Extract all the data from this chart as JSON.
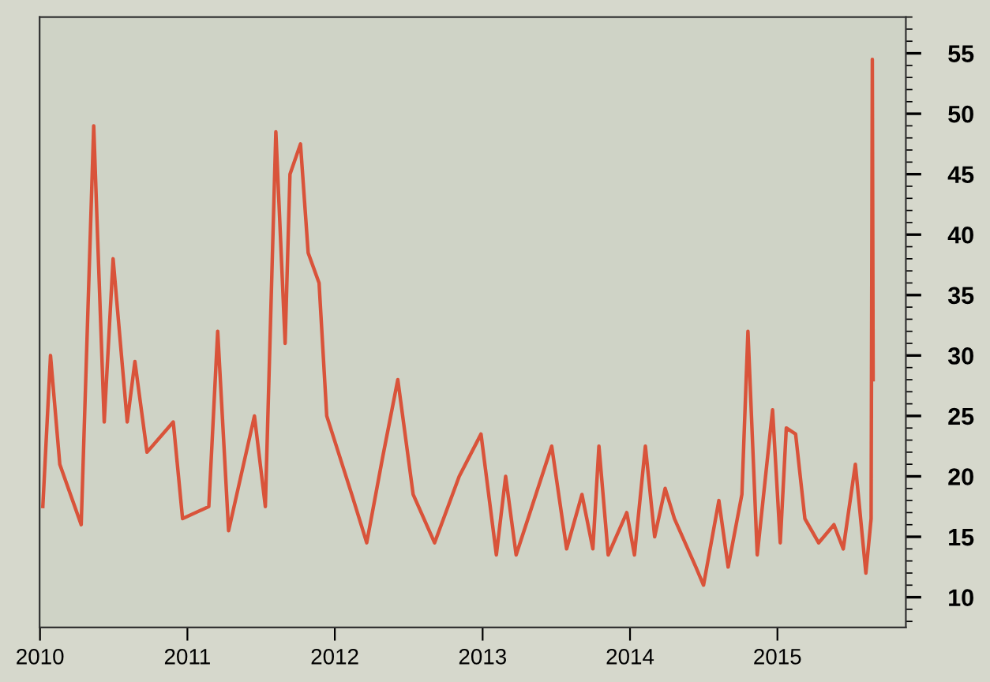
{
  "chart_data": {
    "type": "line",
    "x": [
      "2010-01-08",
      "2010-01-27",
      "2010-02-19",
      "2010-04-13",
      "2010-05-14",
      "2010-05-25",
      "2010-06-09",
      "2010-07-01",
      "2010-08-05",
      "2010-08-24",
      "2010-09-23",
      "2010-11-27",
      "2010-12-20",
      "2011-02-23",
      "2011-03-17",
      "2011-04-13",
      "2011-06-16",
      "2011-07-13",
      "2011-08-08",
      "2011-08-31",
      "2011-09-12",
      "2011-10-08",
      "2011-10-27",
      "2011-11-23",
      "2011-12-12",
      "2012-02-12",
      "2012-03-20",
      "2012-04-28",
      "2012-06-05",
      "2012-07-13",
      "2012-09-04",
      "2012-11-04",
      "2012-12-28",
      "2013-02-04",
      "2013-02-27",
      "2013-03-25",
      "2013-06-21",
      "2013-07-28",
      "2013-09-04",
      "2013-10-01",
      "2013-10-16",
      "2013-11-08",
      "2013-12-24",
      "2014-01-12",
      "2014-02-08",
      "2014-03-03",
      "2014-03-29",
      "2014-04-21",
      "2014-06-13",
      "2014-07-02",
      "2014-08-09",
      "2014-09-01",
      "2014-10-05",
      "2014-10-20",
      "2014-11-12",
      "2014-12-20",
      "2015-01-08",
      "2015-01-23",
      "2015-02-15",
      "2015-03-10",
      "2015-04-13",
      "2015-05-21",
      "2015-06-13",
      "2015-07-13",
      "2015-08-08",
      "2015-08-21",
      "2015-08-24",
      "2015-08-26"
    ],
    "series": [
      {
        "color": "#d9533a",
        "values": [
          17.5,
          30,
          21,
          16,
          49,
          38.5,
          24.5,
          38,
          24.5,
          29.5,
          22,
          24.5,
          16.5,
          17.5,
          32,
          15.5,
          25,
          17.5,
          48.5,
          31,
          45,
          47.5,
          38.5,
          36,
          25,
          18.5,
          14.5,
          21.5,
          28,
          18.5,
          14.5,
          20,
          23.5,
          13.5,
          20,
          13.5,
          22.5,
          14,
          18.5,
          14,
          22.5,
          13.5,
          17,
          13.5,
          22.5,
          15,
          19,
          16.5,
          12.5,
          11,
          18,
          12.5,
          18.5,
          32,
          13.5,
          25.5,
          14.5,
          24,
          23.5,
          16.5,
          14.5,
          16,
          14,
          21,
          12,
          16.5,
          54.5,
          28
        ]
      }
    ],
    "xlim": [
      "2009-12-31",
      "2015-11-15"
    ],
    "xticks": [
      {
        "value": "2010-01-01",
        "label": "2010"
      },
      {
        "value": "2011-01-01",
        "label": "2011"
      },
      {
        "value": "2012-01-01",
        "label": "2012"
      },
      {
        "value": "2013-01-01",
        "label": "2013"
      },
      {
        "value": "2014-01-01",
        "label": "2014"
      },
      {
        "value": "2015-01-01",
        "label": "2015"
      }
    ],
    "ylim": [
      7.5,
      58
    ],
    "yticks": [
      10,
      15,
      20,
      25,
      30,
      35,
      40,
      45,
      50,
      55
    ],
    "grid": false,
    "marker": "none",
    "line_style": "solid"
  }
}
